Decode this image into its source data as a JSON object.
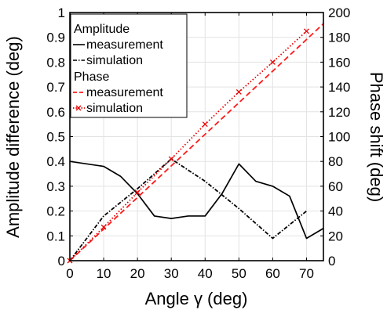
{
  "chart_data": {
    "type": "line",
    "title": "",
    "xlabel": "Angle γ (deg)",
    "ylabel_left": "Amplitude difference (deg)",
    "ylabel_right": "Phase shift (deg)",
    "xlim": [
      0,
      75
    ],
    "ylim_left": [
      0,
      1
    ],
    "ylim_right": [
      0,
      200
    ],
    "x_ticks": [
      0,
      10,
      20,
      30,
      40,
      50,
      60,
      70
    ],
    "y_ticks_left": [
      0,
      0.1,
      0.2,
      0.3,
      0.4,
      0.5,
      0.6,
      0.7,
      0.8,
      0.9,
      1
    ],
    "y_ticks_right": [
      0,
      20,
      40,
      60,
      80,
      100,
      120,
      140,
      160,
      180,
      200
    ],
    "grid": true,
    "legend_position": "top-left",
    "legend": {
      "group_amplitude": "Amplitude",
      "group_phase": "Phase",
      "amp_measurement": "measurement",
      "amp_simulation": "simulation",
      "phase_measurement": "measurement",
      "phase_simulation": "simulation"
    },
    "series": [
      {
        "key": "amp_measurement",
        "axis": "left",
        "color": "#000000",
        "style": "solid",
        "x": [
          0,
          10,
          15,
          20,
          25,
          30,
          35,
          40,
          45,
          50,
          55,
          60,
          65,
          70,
          75
        ],
        "y": [
          0.4,
          0.38,
          0.34,
          0.27,
          0.18,
          0.17,
          0.18,
          0.18,
          0.27,
          0.39,
          0.32,
          0.3,
          0.26,
          0.09,
          0.13
        ]
      },
      {
        "key": "amp_simulation",
        "axis": "left",
        "color": "#000000",
        "style": "dashdot",
        "x": [
          0,
          10,
          20,
          30,
          40,
          50,
          60,
          70
        ],
        "y": [
          0,
          0.18,
          0.29,
          0.41,
          0.32,
          0.21,
          0.09,
          0.2
        ]
      },
      {
        "key": "phase_measurement",
        "axis": "right",
        "color": "#ff1a1a",
        "style": "dashed",
        "x": [
          0,
          75
        ],
        "y": [
          0,
          191
        ]
      },
      {
        "key": "phase_simulation",
        "axis": "right",
        "color": "#e60000",
        "style": "dotted-marker",
        "x": [
          0,
          10,
          20,
          30,
          40,
          50,
          60,
          70
        ],
        "y": [
          0,
          27,
          55,
          82,
          110,
          136,
          160,
          185
        ]
      }
    ]
  }
}
